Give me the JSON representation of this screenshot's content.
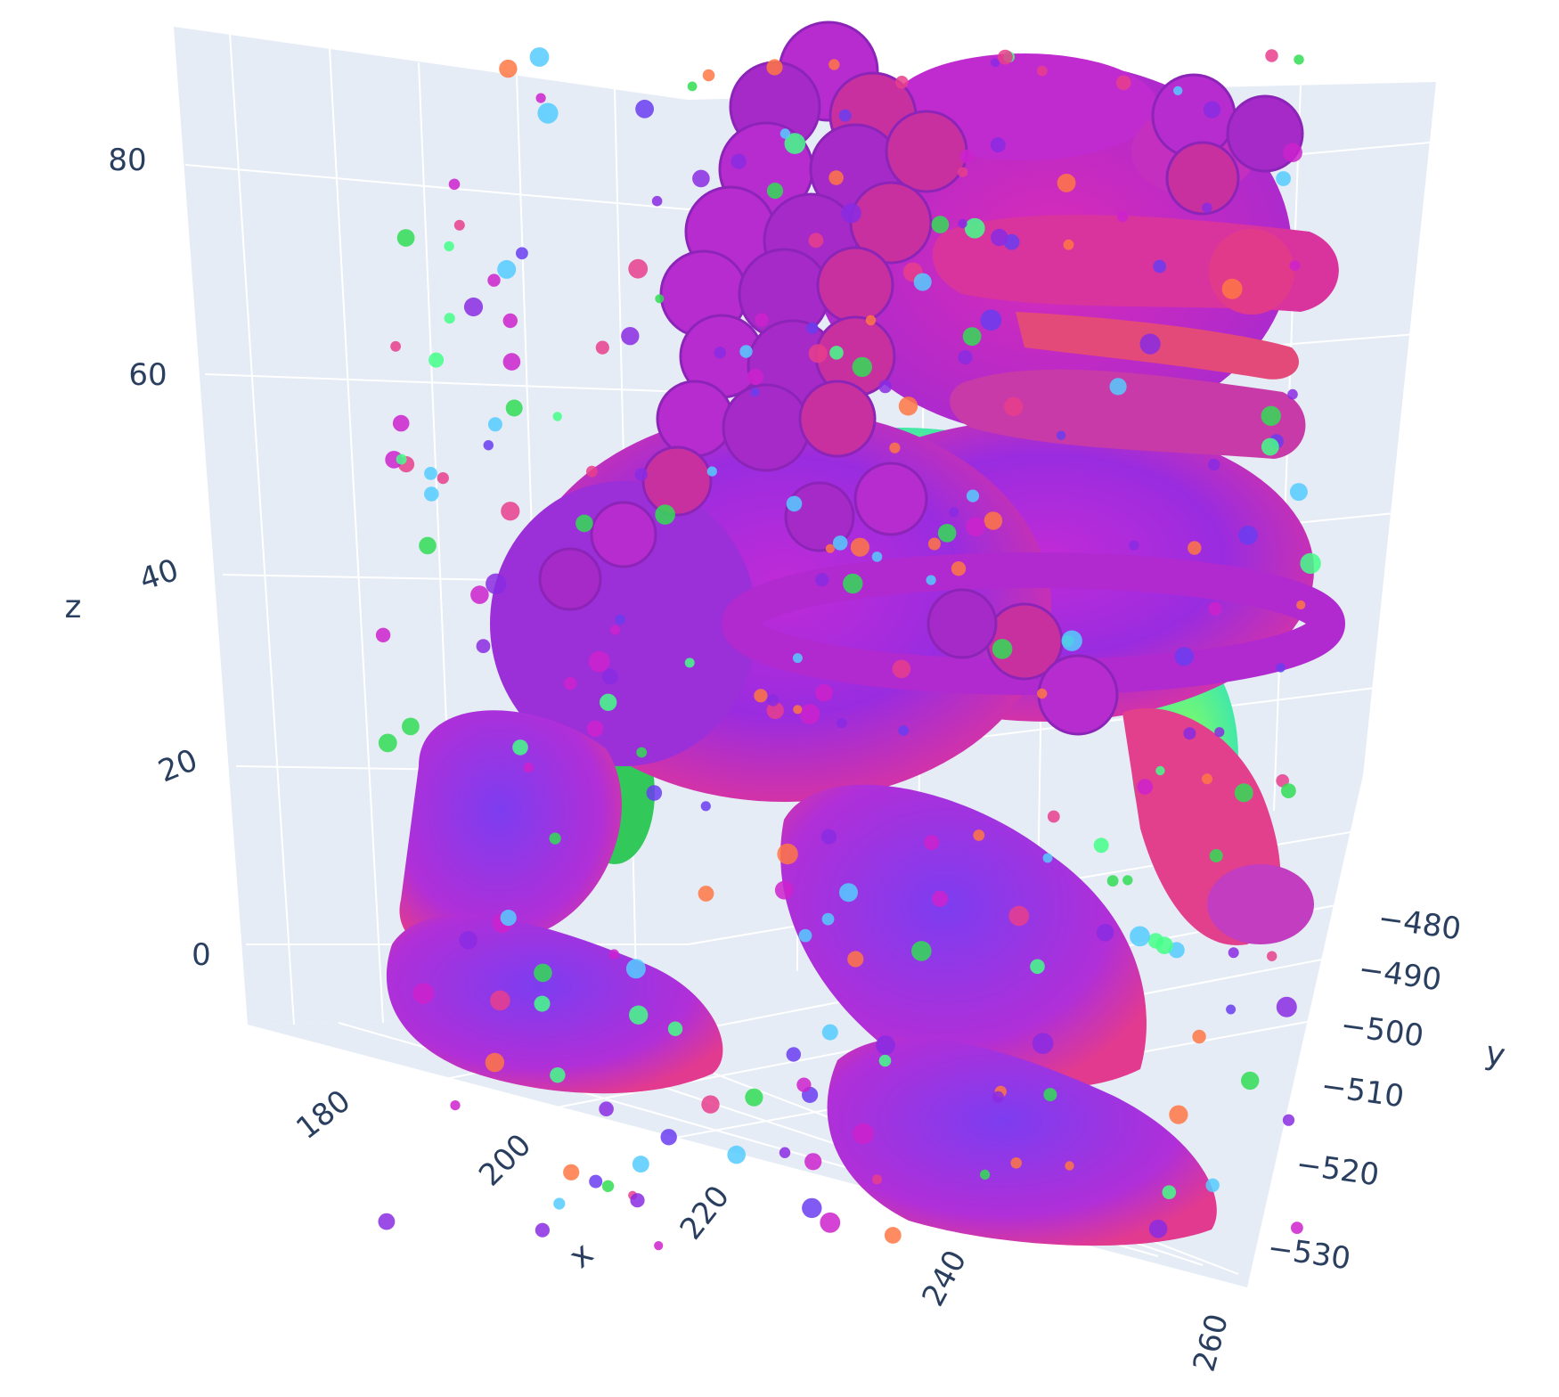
{
  "chart_data": {
    "type": "scatter3d",
    "title": "",
    "subject": "point cloud of a guardian lion statue, points colored by surface normal",
    "axes": {
      "x": {
        "title": "x",
        "ticks": [
          180,
          200,
          220,
          240,
          260
        ],
        "range": [
          170,
          262
        ]
      },
      "y": {
        "title": "y",
        "ticks": [
          -480,
          -490,
          -500,
          -510,
          -520,
          -530
        ],
        "range": [
          -535,
          -475
        ]
      },
      "z": {
        "title": "z",
        "ticks": [
          0,
          20,
          40,
          60,
          80
        ],
        "range": [
          -8,
          90
        ]
      }
    },
    "grid": true,
    "legend": "none",
    "background_color": "#e5ecf6",
    "grid_color": "#ffffff",
    "marker_palette": [
      "#cc22cc",
      "#8a2be2",
      "#e83e8c",
      "#6a3df0",
      "#44ff88",
      "#33dd55",
      "#ff7744",
      "#55ccff"
    ]
  }
}
